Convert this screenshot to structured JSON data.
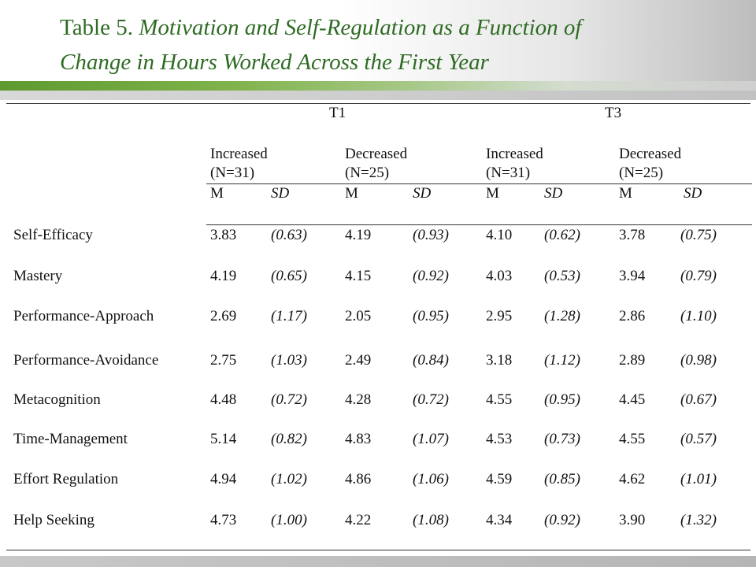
{
  "title": {
    "label": "Table 5.",
    "line1_rest": "Motivation and Self-Regulation as a Function of",
    "line2": "Change in Hours Worked Across the First Year"
  },
  "table": {
    "time_headers": [
      "T1",
      "T3"
    ],
    "groups": [
      {
        "name": "Increased",
        "n": "(N=31)"
      },
      {
        "name": "Decreased",
        "n": "(N=25)"
      },
      {
        "name": "Increased",
        "n": "(N=31)"
      },
      {
        "name": "Decreased",
        "n": "(N=25)"
      }
    ],
    "stat_headers": [
      "M",
      "SD",
      "M",
      "SD",
      "M",
      "SD",
      "M",
      "SD"
    ],
    "rows": [
      {
        "label": "Self-Efficacy",
        "values": [
          "3.83",
          "(0.63)",
          "4.19",
          "(0.93)",
          "4.10",
          "(0.62)",
          "3.78",
          "(0.75)"
        ]
      },
      {
        "label": "Mastery",
        "values": [
          "4.19",
          "(0.65)",
          "4.15",
          "(0.92)",
          "4.03",
          "(0.53)",
          "3.94",
          "(0.79)"
        ]
      },
      {
        "label": "Performance-Approach",
        "values": [
          "2.69",
          "(1.17)",
          "2.05",
          "(0.95)",
          "2.95",
          "(1.28)",
          "2.86",
          "(1.10)"
        ]
      },
      {
        "label": "Performance-Avoidance",
        "values": [
          "2.75",
          "(1.03)",
          "2.49",
          "(0.84)",
          "3.18",
          "(1.12)",
          "2.89",
          "(0.98)"
        ]
      },
      {
        "label": "Metacognition",
        "values": [
          "4.48",
          "(0.72)",
          "4.28",
          "(0.72)",
          "4.55",
          "(0.95)",
          "4.45",
          "(0.67)"
        ]
      },
      {
        "label": "Time-Management",
        "values": [
          "5.14",
          "(0.82)",
          "4.83",
          "(1.07)",
          "4.53",
          "(0.73)",
          "4.55",
          "(0.57)"
        ]
      },
      {
        "label": "Effort Regulation",
        "values": [
          "4.94",
          "(1.02)",
          "4.86",
          "(1.06)",
          "4.59",
          "(0.85)",
          "4.62",
          "(1.01)"
        ]
      },
      {
        "label": "Help Seeking",
        "values": [
          "4.73",
          "(1.00)",
          "4.22",
          "(1.08)",
          "4.34",
          "(0.92)",
          "3.90",
          "(1.32)"
        ]
      }
    ]
  }
}
